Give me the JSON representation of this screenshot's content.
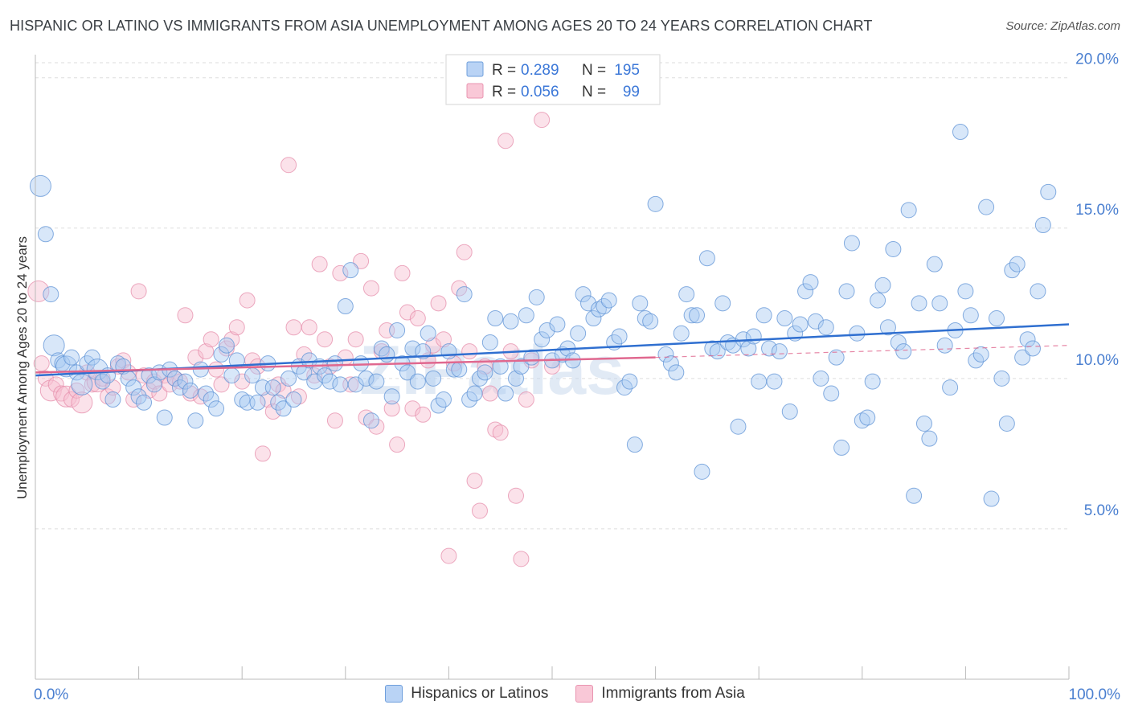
{
  "title": "HISPANIC OR LATINO VS IMMIGRANTS FROM ASIA UNEMPLOYMENT AMONG AGES 20 TO 24 YEARS CORRELATION CHART",
  "source": "Source: ZipAtlas.com",
  "colors": {
    "blue_fill": "#a9c9f2",
    "blue_stroke": "#5f93d6",
    "blue_line": "#2f6fd0",
    "pink_fill": "#f7bfd0",
    "pink_stroke": "#e68eab",
    "pink_line": "#e0688f",
    "axis_text_blue": "#4a7fd0",
    "grid": "#dddddd"
  },
  "stats_legend": {
    "blue": {
      "r_label": "R =",
      "r_value": "0.289",
      "n_label": "N =",
      "n_value": "195"
    },
    "pink": {
      "r_label": "R =",
      "r_value": "0.056",
      "n_label": "N =",
      "n_value": "99"
    }
  },
  "legend": {
    "blue_label": "Hispanics or Latinos",
    "pink_label": "Immigrants from Asia"
  },
  "watermark": "ZIPatlas",
  "chart_data": {
    "type": "scatter",
    "title": "HISPANIC OR LATINO VS IMMIGRANTS FROM ASIA UNEMPLOYMENT AMONG AGES 20 TO 24 YEARS CORRELATION CHART",
    "xlabel": "",
    "ylabel": "Unemployment Among Ages 20 to 24 years",
    "xlim": [
      0,
      100
    ],
    "ylim": [
      0,
      20.5
    ],
    "x_tick_labels": [
      "0.0%",
      "100.0%"
    ],
    "y_ticks": [
      5,
      10,
      15,
      20
    ],
    "y_tick_labels": [
      "5.0%",
      "10.0%",
      "15.0%",
      "20.0%"
    ],
    "series": [
      {
        "name": "Hispanics or Latinos",
        "trend": {
          "x": [
            0,
            100
          ],
          "y": [
            10.1,
            11.8
          ]
        },
        "points": [
          [
            0.5,
            16.4
          ],
          [
            1,
            14.8
          ],
          [
            1.5,
            12.8
          ],
          [
            1.8,
            11.1
          ],
          [
            2.2,
            10.6
          ],
          [
            2.6,
            10.5
          ],
          [
            3,
            10.4
          ],
          [
            3.5,
            10.7
          ],
          [
            4,
            10.2
          ],
          [
            4.5,
            9.8
          ],
          [
            5,
            10.5
          ],
          [
            5.5,
            10.7
          ],
          [
            6,
            10.3
          ],
          [
            6.5,
            9.9
          ],
          [
            7,
            10.1
          ],
          [
            7.5,
            9.3
          ],
          [
            8,
            10.5
          ],
          [
            8.5,
            10.4
          ],
          [
            9,
            10.0
          ],
          [
            9.5,
            9.7
          ],
          [
            10,
            9.4
          ],
          [
            10.5,
            9.2
          ],
          [
            11,
            10.1
          ],
          [
            11.5,
            9.8
          ],
          [
            12,
            10.2
          ],
          [
            12.5,
            8.7
          ],
          [
            13,
            10.3
          ],
          [
            13.5,
            10.0
          ],
          [
            14,
            9.7
          ],
          [
            14.5,
            9.9
          ],
          [
            15,
            9.6
          ],
          [
            15.5,
            8.6
          ],
          [
            16,
            10.3
          ],
          [
            16.5,
            9.5
          ],
          [
            17,
            9.3
          ],
          [
            17.5,
            9.0
          ],
          [
            18,
            10.8
          ],
          [
            18.5,
            11.1
          ],
          [
            19,
            10.1
          ],
          [
            19.5,
            10.6
          ],
          [
            20,
            9.3
          ],
          [
            20.5,
            9.2
          ],
          [
            21,
            10.1
          ],
          [
            21.5,
            9.2
          ],
          [
            22,
            9.7
          ],
          [
            22.5,
            10.5
          ],
          [
            23,
            9.7
          ],
          [
            23.5,
            9.2
          ],
          [
            24,
            9.0
          ],
          [
            24.5,
            10.0
          ],
          [
            25,
            9.3
          ],
          [
            25.5,
            10.4
          ],
          [
            26,
            10.2
          ],
          [
            26.5,
            10.6
          ],
          [
            27,
            9.9
          ],
          [
            27.5,
            10.4
          ],
          [
            28,
            10.1
          ],
          [
            28.5,
            9.9
          ],
          [
            29,
            10.5
          ],
          [
            29.5,
            9.8
          ],
          [
            30,
            12.4
          ],
          [
            30.5,
            13.6
          ],
          [
            31,
            9.8
          ],
          [
            31.5,
            10.5
          ],
          [
            32,
            10.0
          ],
          [
            32.5,
            8.6
          ],
          [
            33,
            9.9
          ],
          [
            33.5,
            11.0
          ],
          [
            34,
            10.8
          ],
          [
            34.5,
            9.4
          ],
          [
            35,
            11.6
          ],
          [
            35.5,
            10.5
          ],
          [
            36,
            10.2
          ],
          [
            36.5,
            11.0
          ],
          [
            37,
            9.9
          ],
          [
            37.5,
            10.9
          ],
          [
            38,
            11.5
          ],
          [
            38.5,
            10.0
          ],
          [
            39,
            9.1
          ],
          [
            39.5,
            9.3
          ],
          [
            40,
            10.9
          ],
          [
            40.5,
            10.3
          ],
          [
            41,
            10.3
          ],
          [
            41.5,
            12.8
          ],
          [
            42,
            9.3
          ],
          [
            42.5,
            9.5
          ],
          [
            43,
            10.0
          ],
          [
            43.5,
            10.2
          ],
          [
            44,
            11.2
          ],
          [
            44.5,
            12.0
          ],
          [
            45,
            10.4
          ],
          [
            45.5,
            9.5
          ],
          [
            46,
            11.9
          ],
          [
            46.5,
            10.0
          ],
          [
            47,
            10.4
          ],
          [
            47.5,
            12.1
          ],
          [
            48,
            10.7
          ],
          [
            48.5,
            12.7
          ],
          [
            49,
            11.3
          ],
          [
            49.5,
            11.6
          ],
          [
            50,
            10.6
          ],
          [
            50.5,
            11.8
          ],
          [
            51,
            10.8
          ],
          [
            51.5,
            11.0
          ],
          [
            52,
            10.6
          ],
          [
            52.5,
            11.5
          ],
          [
            53,
            12.8
          ],
          [
            53.5,
            12.5
          ],
          [
            54,
            12.0
          ],
          [
            54.5,
            12.3
          ],
          [
            55,
            12.4
          ],
          [
            55.5,
            12.6
          ],
          [
            56,
            11.2
          ],
          [
            56.5,
            11.4
          ],
          [
            57,
            9.7
          ],
          [
            57.5,
            9.9
          ],
          [
            58,
            7.8
          ],
          [
            58.5,
            12.5
          ],
          [
            59,
            12.0
          ],
          [
            59.5,
            11.9
          ],
          [
            60,
            15.8
          ],
          [
            61,
            10.8
          ],
          [
            61.5,
            10.5
          ],
          [
            62,
            10.2
          ],
          [
            62.5,
            11.5
          ],
          [
            63,
            12.8
          ],
          [
            63.5,
            12.1
          ],
          [
            64,
            12.1
          ],
          [
            64.5,
            6.9
          ],
          [
            65,
            14.0
          ],
          [
            65.5,
            11.0
          ],
          [
            66,
            10.9
          ],
          [
            66.5,
            12.5
          ],
          [
            67,
            11.2
          ],
          [
            67.5,
            11.1
          ],
          [
            68,
            8.4
          ],
          [
            68.5,
            11.3
          ],
          [
            69,
            11.0
          ],
          [
            69.5,
            11.4
          ],
          [
            70,
            9.9
          ],
          [
            70.5,
            12.1
          ],
          [
            71,
            11.0
          ],
          [
            71.5,
            9.9
          ],
          [
            72,
            10.9
          ],
          [
            72.5,
            12.0
          ],
          [
            73,
            8.9
          ],
          [
            73.5,
            11.5
          ],
          [
            74,
            11.8
          ],
          [
            74.5,
            12.9
          ],
          [
            75,
            13.2
          ],
          [
            75.5,
            11.9
          ],
          [
            76,
            10.0
          ],
          [
            76.5,
            11.7
          ],
          [
            77,
            9.5
          ],
          [
            77.5,
            10.7
          ],
          [
            78,
            7.7
          ],
          [
            78.5,
            12.9
          ],
          [
            79,
            14.5
          ],
          [
            79.5,
            11.5
          ],
          [
            80,
            8.6
          ],
          [
            80.5,
            8.7
          ],
          [
            81,
            9.9
          ],
          [
            81.5,
            12.6
          ],
          [
            82,
            13.1
          ],
          [
            82.5,
            11.7
          ],
          [
            83,
            14.3
          ],
          [
            83.5,
            11.2
          ],
          [
            84,
            10.9
          ],
          [
            84.5,
            15.6
          ],
          [
            85,
            6.1
          ],
          [
            85.5,
            12.5
          ],
          [
            86,
            8.5
          ],
          [
            86.5,
            8.0
          ],
          [
            87,
            13.8
          ],
          [
            87.5,
            12.5
          ],
          [
            88,
            11.1
          ],
          [
            88.5,
            9.7
          ],
          [
            89,
            11.6
          ],
          [
            89.5,
            18.2
          ],
          [
            90,
            12.9
          ],
          [
            90.5,
            12.1
          ],
          [
            91,
            10.6
          ],
          [
            91.5,
            10.8
          ],
          [
            92,
            15.7
          ],
          [
            92.5,
            6.0
          ],
          [
            93,
            12.0
          ],
          [
            93.5,
            10.0
          ],
          [
            94,
            8.5
          ],
          [
            94.5,
            13.6
          ],
          [
            95,
            13.8
          ],
          [
            95.5,
            10.7
          ],
          [
            96,
            11.3
          ],
          [
            96.5,
            11.0
          ],
          [
            97,
            12.9
          ],
          [
            97.5,
            15.1
          ],
          [
            98,
            16.2
          ]
        ]
      },
      {
        "name": "Immigrants from Asia",
        "trend": {
          "x": [
            0,
            60
          ],
          "y": [
            10.2,
            10.7
          ]
        },
        "trend_dashed": {
          "x": [
            60,
            100
          ],
          "y": [
            10.7,
            11.1
          ]
        },
        "points": [
          [
            0.3,
            12.9
          ],
          [
            0.6,
            10.5
          ],
          [
            1,
            10.0
          ],
          [
            1.5,
            9.6
          ],
          [
            2,
            9.8
          ],
          [
            2.5,
            9.5
          ],
          [
            3,
            9.4
          ],
          [
            3.5,
            9.3
          ],
          [
            4,
            9.6
          ],
          [
            4.5,
            9.2
          ],
          [
            5,
            10.2
          ],
          [
            5.5,
            9.8
          ],
          [
            6,
            9.9
          ],
          [
            6.5,
            10.0
          ],
          [
            7,
            9.4
          ],
          [
            7.5,
            9.7
          ],
          [
            8,
            10.4
          ],
          [
            8.5,
            10.6
          ],
          [
            9,
            10.2
          ],
          [
            9.5,
            9.3
          ],
          [
            10,
            12.9
          ],
          [
            10.5,
            10.1
          ],
          [
            11,
            9.6
          ],
          [
            11.5,
            9.9
          ],
          [
            12,
            9.5
          ],
          [
            12.5,
            10.1
          ],
          [
            13,
            9.8
          ],
          [
            13.5,
            10.0
          ],
          [
            14,
            9.9
          ],
          [
            14.5,
            12.1
          ],
          [
            15,
            9.5
          ],
          [
            15.5,
            10.7
          ],
          [
            16,
            9.4
          ],
          [
            16.5,
            10.9
          ],
          [
            17,
            11.3
          ],
          [
            17.5,
            10.3
          ],
          [
            18,
            9.8
          ],
          [
            18.5,
            11.0
          ],
          [
            19,
            11.3
          ],
          [
            19.5,
            11.7
          ],
          [
            20,
            9.9
          ],
          [
            20.5,
            12.6
          ],
          [
            21,
            10.6
          ],
          [
            21.5,
            10.4
          ],
          [
            22,
            7.5
          ],
          [
            22.5,
            9.3
          ],
          [
            23,
            8.9
          ],
          [
            23.5,
            9.8
          ],
          [
            24,
            9.6
          ],
          [
            24.5,
            17.1
          ],
          [
            25,
            11.7
          ],
          [
            25.5,
            9.4
          ],
          [
            26,
            10.8
          ],
          [
            26.5,
            11.7
          ],
          [
            27,
            10.1
          ],
          [
            27.5,
            13.8
          ],
          [
            28,
            11.3
          ],
          [
            28.5,
            10.4
          ],
          [
            29,
            8.6
          ],
          [
            29.5,
            13.5
          ],
          [
            30,
            10.7
          ],
          [
            30.5,
            9.8
          ],
          [
            31,
            11.3
          ],
          [
            31.5,
            13.9
          ],
          [
            32,
            8.7
          ],
          [
            32.5,
            13.0
          ],
          [
            33,
            8.4
          ],
          [
            33.5,
            10.9
          ],
          [
            34,
            11.6
          ],
          [
            34.5,
            9.0
          ],
          [
            35,
            7.8
          ],
          [
            35.5,
            13.5
          ],
          [
            36,
            12.2
          ],
          [
            36.5,
            9.0
          ],
          [
            37,
            12.0
          ],
          [
            37.5,
            8.8
          ],
          [
            38,
            10.6
          ],
          [
            38.5,
            11.1
          ],
          [
            39,
            12.5
          ],
          [
            39.5,
            11.3
          ],
          [
            40,
            4.1
          ],
          [
            40.5,
            10.5
          ],
          [
            41,
            13.0
          ],
          [
            41.5,
            14.2
          ],
          [
            42,
            10.9
          ],
          [
            42.5,
            6.6
          ],
          [
            43,
            5.6
          ],
          [
            43.5,
            10.4
          ],
          [
            44,
            9.5
          ],
          [
            44.5,
            8.3
          ],
          [
            45,
            8.2
          ],
          [
            45.5,
            17.9
          ],
          [
            46,
            10.9
          ],
          [
            46.5,
            6.1
          ],
          [
            47,
            4.0
          ],
          [
            47.5,
            9.3
          ],
          [
            48,
            10.6
          ],
          [
            49,
            18.6
          ],
          [
            50,
            10.4
          ]
        ]
      }
    ]
  }
}
